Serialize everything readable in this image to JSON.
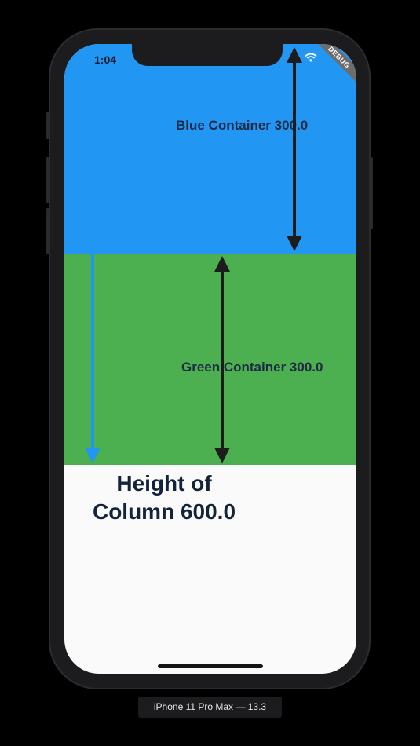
{
  "status_bar": {
    "time": "1:04",
    "debug_banner": "DEBUG"
  },
  "containers": {
    "blue": {
      "label": "Blue Container 300.0",
      "color": "#2196f3"
    },
    "green": {
      "label": "Green Container 300.0",
      "color": "#4caf50"
    }
  },
  "column": {
    "label": "Height of Column 600.0"
  },
  "arrows": {
    "dimension_color": "#1c1c1c",
    "column_arrow_color": "#2196f3"
  },
  "device": {
    "caption": "iPhone 11 Pro Max — 13.3"
  }
}
